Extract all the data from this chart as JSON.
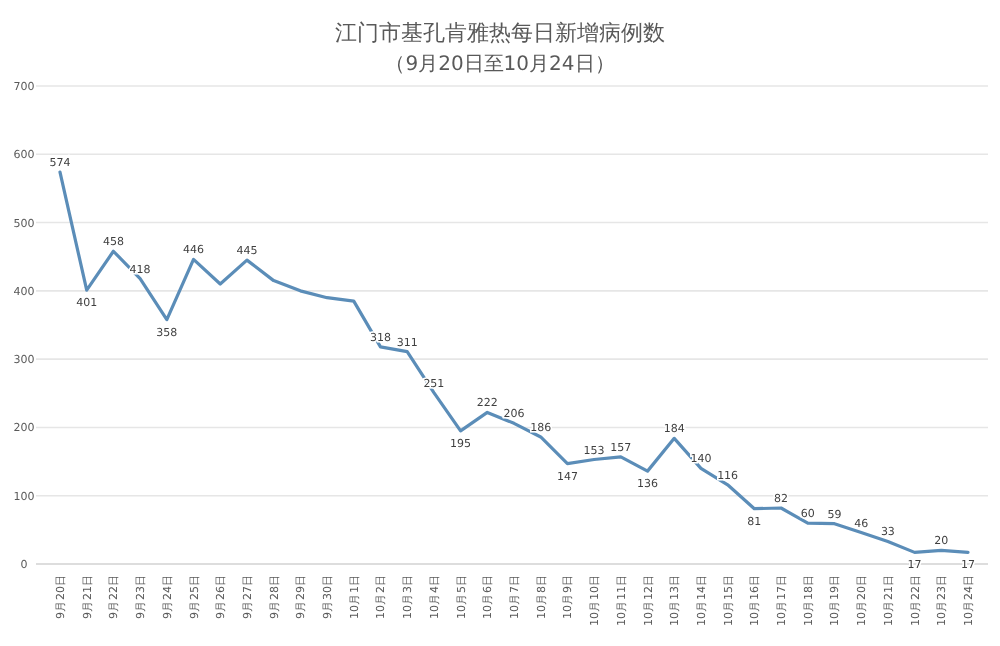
{
  "chart_data": {
    "type": "line",
    "title": "江门市基孔肯雅热每日新增病例数",
    "subtitle": "（9月20日至10月24日）",
    "categories": [
      "9月20日",
      "9月21日",
      "9月22日",
      "9月23日",
      "9月24日",
      "9月25日",
      "9月26日",
      "9月27日",
      "9月28日",
      "9月29日",
      "9月30日",
      "10月1日",
      "10月2日",
      "10月3日",
      "10月4日",
      "10月5日",
      "10月6日",
      "10月7日",
      "10月8日",
      "10月9日",
      "10月10日",
      "10月11日",
      "10月12日",
      "10月13日",
      "10月14日",
      "10月15日",
      "10月16日",
      "10月17日",
      "10月18日",
      "10月19日",
      "10月20日",
      "10月21日",
      "10月22日",
      "10月23日",
      "10月24日"
    ],
    "values": [
      574,
      401,
      458,
      418,
      358,
      446,
      410,
      445,
      415,
      400,
      390,
      385,
      318,
      311,
      251,
      195,
      222,
      206,
      186,
      147,
      153,
      157,
      136,
      184,
      140,
      116,
      81,
      82,
      60,
      59,
      46,
      33,
      17,
      20,
      17
    ],
    "value_labels": [
      "574",
      "401",
      "458",
      "418",
      "358",
      "446",
      null,
      "445",
      null,
      null,
      null,
      null,
      "318",
      "311",
      "251",
      "195",
      "222",
      "206",
      "186",
      "147",
      "153",
      "157",
      "136",
      "184",
      "140",
      "116",
      "81",
      "82",
      "60",
      "59",
      "46",
      "33",
      "17",
      "20",
      "17"
    ],
    "color": "#5b8db8",
    "ylim": [
      0,
      700
    ],
    "yticks": [
      0,
      100,
      200,
      300,
      400,
      500,
      600,
      700
    ],
    "grid": "y",
    "marker": "none",
    "line_style": "solid"
  }
}
